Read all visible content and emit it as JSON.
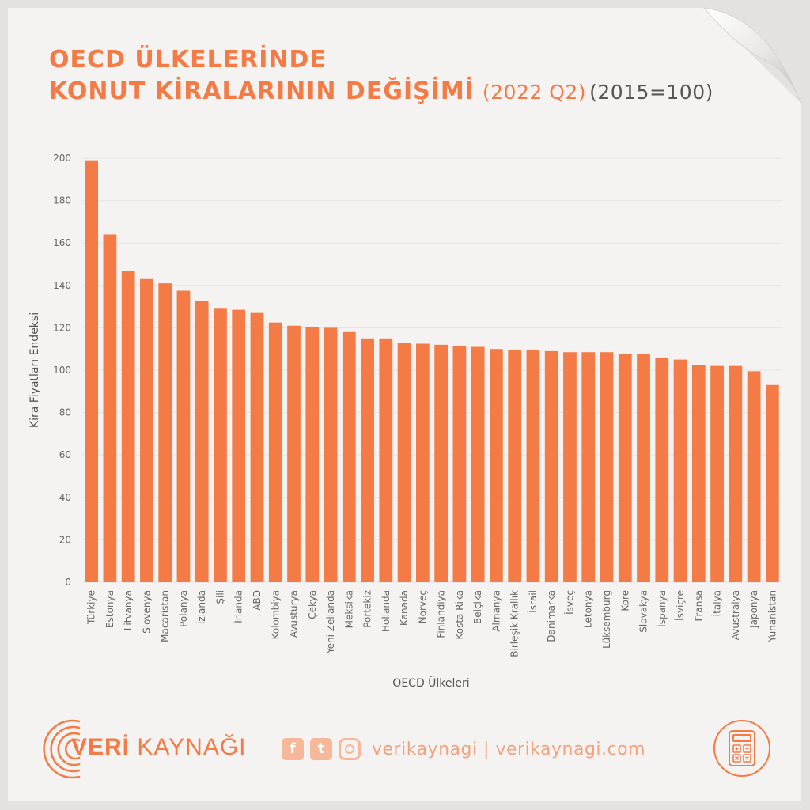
{
  "title": {
    "line1": "OECD ÜLKELERİNDE",
    "line2": "KONUT KİRALARININ DEĞİŞİMİ",
    "period": "(2022 Q2)",
    "base": "(2015=100)"
  },
  "brand": {
    "name_bold": "VERİ",
    "name_rest": " KAYNAĞI",
    "social_text": "verikaynagi | verikaynagi.com",
    "accent_color": "#f47b45",
    "light_accent_color": "#f6b899",
    "icons": [
      "facebook-icon",
      "twitter-icon",
      "instagram-icon",
      "calculator-icon"
    ]
  },
  "chart_data": {
    "type": "bar",
    "xlabel": "OECD Ülkeleri",
    "ylabel": "Kira Fiyatları Endeksi",
    "ylim": [
      0,
      200
    ],
    "yticks": [
      0,
      20,
      40,
      60,
      80,
      100,
      120,
      140,
      160,
      180,
      200
    ],
    "grid": true,
    "bar_color": "#f47b45",
    "categories": [
      "Türkiye",
      "Estonya",
      "Litvanya",
      "Slovenya",
      "Macaristan",
      "Polanya",
      "İzlanda",
      "Şili",
      "İrlanda",
      "ABD",
      "Kolombiya",
      "Avusturya",
      "Çekya",
      "Yeni Zellanda",
      "Meksika",
      "Portekiz",
      "Hollanda",
      "Kanada",
      "Norveç",
      "Finlandiya",
      "Kosta Rika",
      "Belçika",
      "Almanya",
      "Birleşik Krallık",
      "İsrail",
      "Danimarka",
      "İsveç",
      "Letonya",
      "Lüksemburg",
      "Kore",
      "Slovakya",
      "İspanya",
      "İsviçre",
      "Fransa",
      "İtalya",
      "Avustralya",
      "Japonya",
      "Yunanistan"
    ],
    "values": [
      199,
      164,
      147,
      143,
      141,
      137.5,
      132.5,
      129,
      128.5,
      127,
      122.5,
      121,
      120.5,
      120,
      118,
      115,
      115,
      113,
      112.5,
      112,
      111.5,
      111,
      110,
      109.5,
      109.5,
      109,
      108.5,
      108.5,
      108.5,
      107.5,
      107.5,
      106,
      105,
      102.5,
      102,
      102,
      99.5,
      93
    ]
  }
}
